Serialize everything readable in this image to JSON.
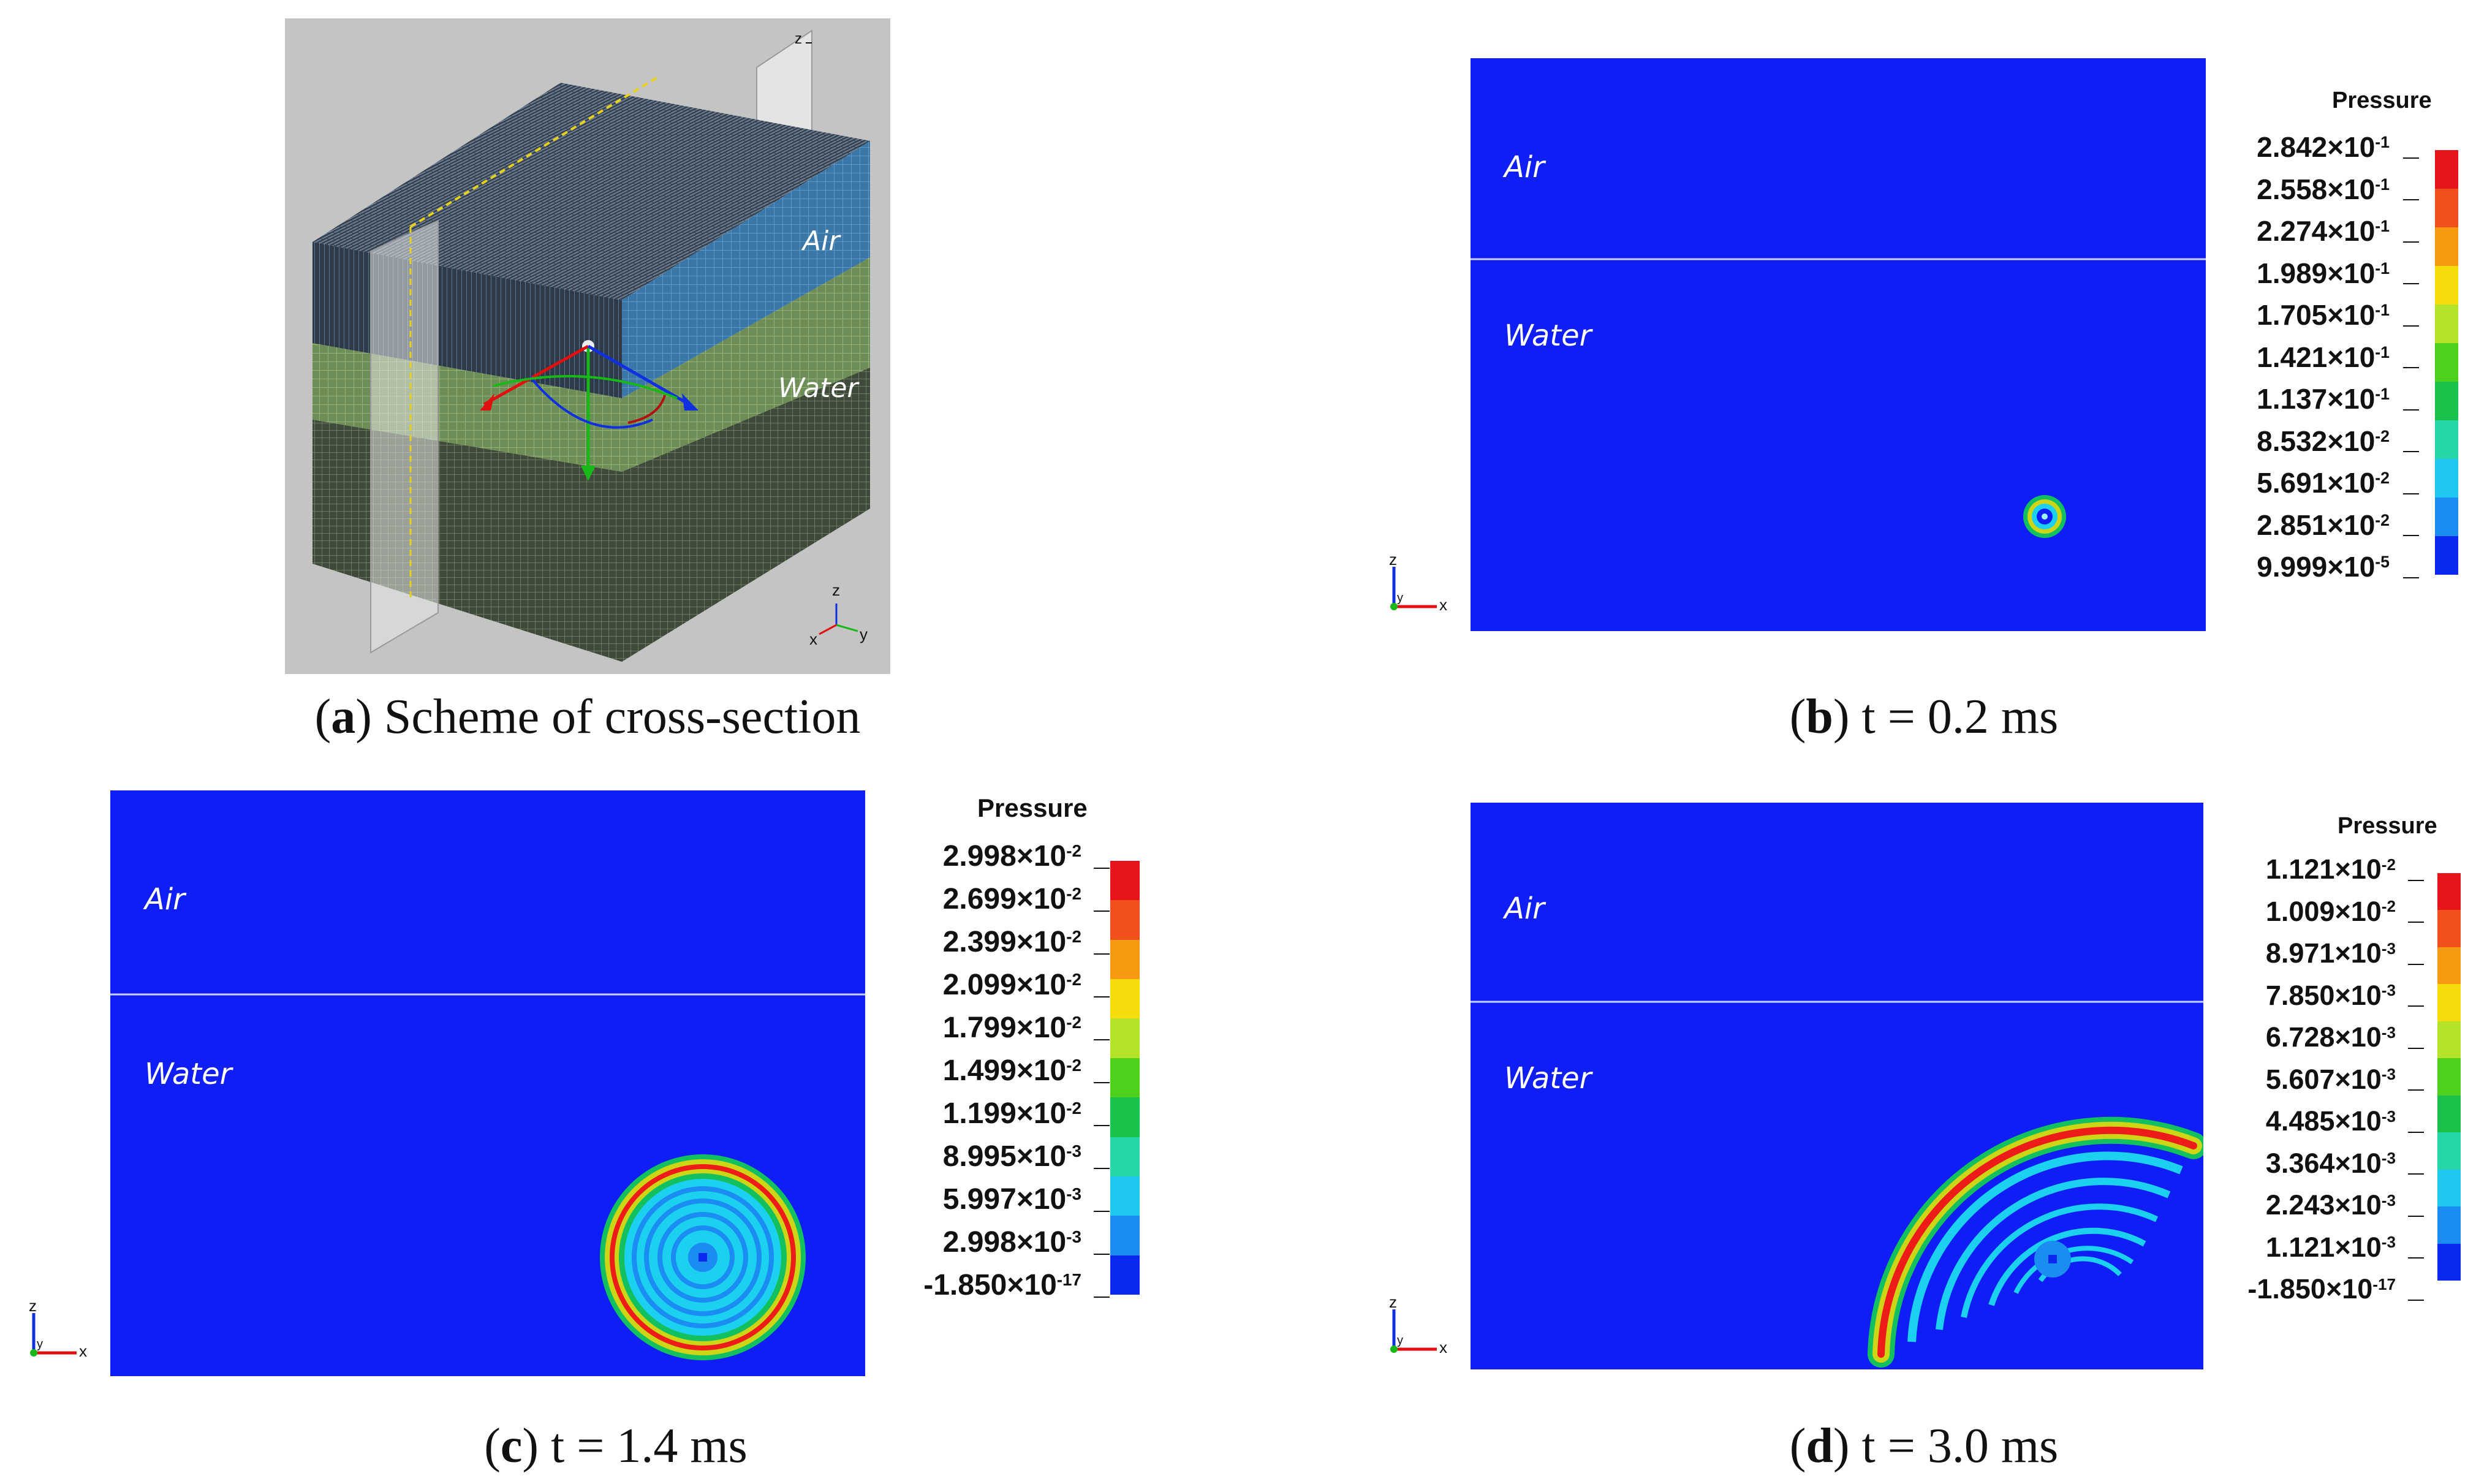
{
  "figure": {
    "panels": [
      {
        "id": "a",
        "caption_letter": "a",
        "caption_text": " Scheme of cross-section",
        "labels": {
          "air": "Air",
          "water": "Water"
        },
        "axis": {
          "x": "x",
          "y": "y",
          "z": "z"
        }
      },
      {
        "id": "b",
        "caption_letter": "b",
        "caption_text": " t = 0.2 ms",
        "labels": {
          "air": "Air",
          "water": "Water"
        },
        "legend": {
          "title": "Pressure",
          "ticks": [
            {
              "mant": "2.842",
              "exp": "-1"
            },
            {
              "mant": "2.558",
              "exp": "-1"
            },
            {
              "mant": "2.274",
              "exp": "-1"
            },
            {
              "mant": "1.989",
              "exp": "-1"
            },
            {
              "mant": "1.705",
              "exp": "-1"
            },
            {
              "mant": "1.421",
              "exp": "-1"
            },
            {
              "mant": "1.137",
              "exp": "-1"
            },
            {
              "mant": "8.532",
              "exp": "-2"
            },
            {
              "mant": "5.691",
              "exp": "-2"
            },
            {
              "mant": "2.851",
              "exp": "-2"
            },
            {
              "mant": "9.999",
              "exp": "-5"
            }
          ]
        },
        "axis": {
          "x": "x",
          "y": "y",
          "z": "z"
        }
      },
      {
        "id": "c",
        "caption_letter": "c",
        "caption_text": " t = 1.4 ms",
        "labels": {
          "air": "Air",
          "water": "Water"
        },
        "legend": {
          "title": "Pressure",
          "ticks": [
            {
              "mant": "2.998",
              "exp": "-2"
            },
            {
              "mant": "2.699",
              "exp": "-2"
            },
            {
              "mant": "2.399",
              "exp": "-2"
            },
            {
              "mant": "2.099",
              "exp": "-2"
            },
            {
              "mant": "1.799",
              "exp": "-2"
            },
            {
              "mant": "1.499",
              "exp": "-2"
            },
            {
              "mant": "1.199",
              "exp": "-2"
            },
            {
              "mant": "8.995",
              "exp": "-3"
            },
            {
              "mant": "5.997",
              "exp": "-3"
            },
            {
              "mant": "2.998",
              "exp": "-3"
            },
            {
              "mant": "-1.850",
              "exp": "-17"
            }
          ]
        },
        "axis": {
          "x": "x",
          "y": "y",
          "z": "z"
        }
      },
      {
        "id": "d",
        "caption_letter": "d",
        "caption_text": " t = 3.0 ms",
        "labels": {
          "air": "Air",
          "water": "Water"
        },
        "legend": {
          "title": "Pressure",
          "ticks": [
            {
              "mant": "1.121",
              "exp": "-2"
            },
            {
              "mant": "1.009",
              "exp": "-2"
            },
            {
              "mant": "8.971",
              "exp": "-3"
            },
            {
              "mant": "7.850",
              "exp": "-3"
            },
            {
              "mant": "6.728",
              "exp": "-3"
            },
            {
              "mant": "5.607",
              "exp": "-3"
            },
            {
              "mant": "4.485",
              "exp": "-3"
            },
            {
              "mant": "3.364",
              "exp": "-3"
            },
            {
              "mant": "2.243",
              "exp": "-3"
            },
            {
              "mant": "1.121",
              "exp": "-3"
            },
            {
              "mant": "-1.850",
              "exp": "-17"
            }
          ]
        },
        "axis": {
          "x": "x",
          "y": "y",
          "z": "z"
        }
      }
    ],
    "times_symbol": "×10",
    "colormap": [
      "#e8141c",
      "#f0501c",
      "#f79a12",
      "#f7dc0c",
      "#b4e32a",
      "#4fd01c",
      "#18c24a",
      "#27d6a8",
      "#1ec8ee",
      "#1a8cf2",
      "#0a28f0"
    ],
    "colors": {
      "field_background": "#0e1ef4",
      "interface_line": "#c9d3ff",
      "ring_outer": "#12c060",
      "ring_mid": "#cdd616",
      "ring_core": "#ee1c18",
      "ring_inner": "#1cd0f0",
      "mesh_air": "#3b76a8",
      "mesh_water": "#6e8e58",
      "mesh_sediment": "#3f4a3a",
      "panel_a_bg": "#c4c4c4"
    }
  }
}
